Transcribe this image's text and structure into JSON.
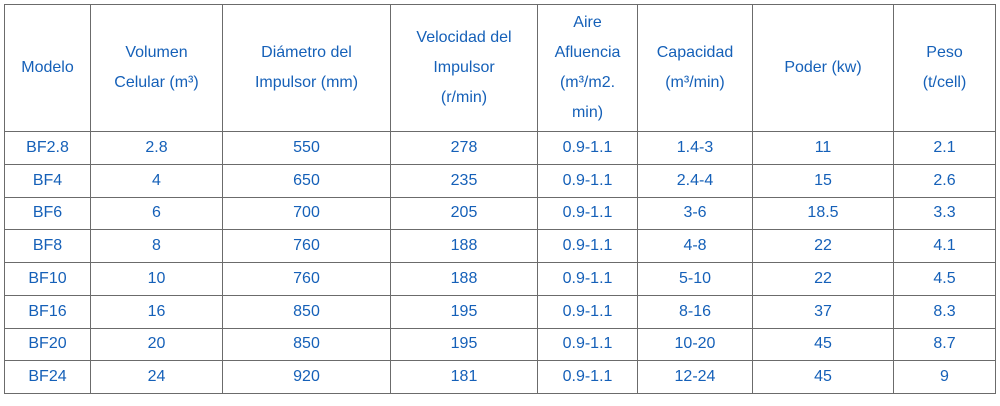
{
  "table": {
    "header": [
      [
        "Modelo"
      ],
      [
        "Volumen",
        "Celular (m³)"
      ],
      [
        "Diámetro del",
        "Impulsor (mm)"
      ],
      [
        "Velocidad del",
        "Impulsor",
        "(r/min)"
      ],
      [
        "Aire",
        "Afluencia",
        "(m³/m2.",
        "min)"
      ],
      [
        "Capacidad",
        "(m³/min)"
      ],
      [
        "Poder (kw)"
      ],
      [
        "Peso",
        "(t/cell)"
      ]
    ],
    "rows": [
      [
        "BF2.8",
        "2.8",
        "550",
        "278",
        "0.9-1.1",
        "1.4-3",
        "11",
        "2.1"
      ],
      [
        "BF4",
        "4",
        "650",
        "235",
        "0.9-1.1",
        "2.4-4",
        "15",
        "2.6"
      ],
      [
        "BF6",
        "6",
        "700",
        "205",
        "0.9-1.1",
        "3-6",
        "18.5",
        "3.3"
      ],
      [
        "BF8",
        "8",
        "760",
        "188",
        "0.9-1.1",
        "4-8",
        "22",
        "4.1"
      ],
      [
        "BF10",
        "10",
        "760",
        "188",
        "0.9-1.1",
        "5-10",
        "22",
        "4.5"
      ],
      [
        "BF16",
        "16",
        "850",
        "195",
        "0.9-1.1",
        "8-16",
        "37",
        "8.3"
      ],
      [
        "BF20",
        "20",
        "850",
        "195",
        "0.9-1.1",
        "10-20",
        "45",
        "8.7"
      ],
      [
        "BF24",
        "24",
        "920",
        "181",
        "0.9-1.1",
        "12-24",
        "45",
        "9"
      ]
    ]
  }
}
